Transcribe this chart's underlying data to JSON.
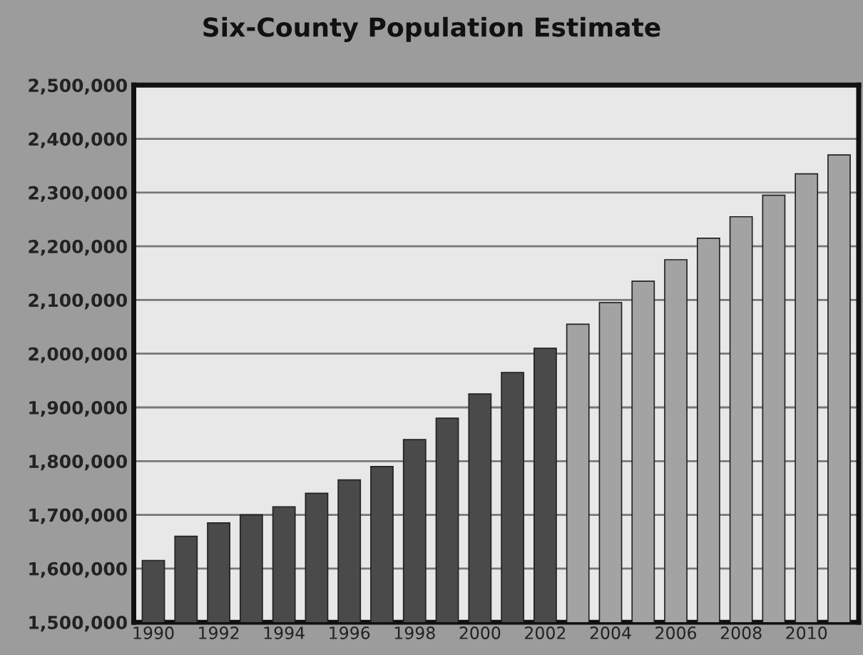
{
  "chart_data": {
    "type": "bar",
    "title": "Six-County Population Estimate",
    "categories": [
      "1990",
      null,
      "1992",
      null,
      "1994",
      null,
      "1996",
      null,
      "1998",
      null,
      "2000",
      null,
      "2002",
      null,
      "2004",
      null,
      "2006",
      null,
      "2008",
      null,
      "2010",
      null
    ],
    "values": [
      1615000,
      1660000,
      1685000,
      1700000,
      1715000,
      1740000,
      1765000,
      1790000,
      1840000,
      1880000,
      1925000,
      1965000,
      2010000,
      2055000,
      2095000,
      2135000,
      2175000,
      2215000,
      2255000,
      2295000,
      2335000,
      2370000
    ],
    "colors": [
      "#4a4a4a",
      "#4a4a4a",
      "#4a4a4a",
      "#4a4a4a",
      "#4a4a4a",
      "#4a4a4a",
      "#4a4a4a",
      "#4a4a4a",
      "#4a4a4a",
      "#4a4a4a",
      "#4a4a4a",
      "#4a4a4a",
      "#4a4a4a",
      "#a3a3a3",
      "#a3a3a3",
      "#a3a3a3",
      "#a3a3a3",
      "#a3a3a3",
      "#a3a3a3",
      "#a3a3a3",
      "#a3a3a3",
      "#a3a3a3"
    ],
    "ylim": [
      1500000,
      2500000
    ],
    "yticks": [
      {
        "value": 1500000,
        "label": "1,500,000"
      },
      {
        "value": 1600000,
        "label": "1,600,000"
      },
      {
        "value": 1700000,
        "label": "1,700,000"
      },
      {
        "value": 1800000,
        "label": "1,800,000"
      },
      {
        "value": 1900000,
        "label": "1,900,000"
      },
      {
        "value": 2000000,
        "label": "2,000,000"
      },
      {
        "value": 2100000,
        "label": "2,100,000"
      },
      {
        "value": 2200000,
        "label": "2,200,000"
      },
      {
        "value": 2300000,
        "label": "2,300,000"
      },
      {
        "value": 2400000,
        "label": "2,400,000"
      },
      {
        "value": 2500000,
        "label": "2,500,000"
      }
    ],
    "grid": "y"
  }
}
